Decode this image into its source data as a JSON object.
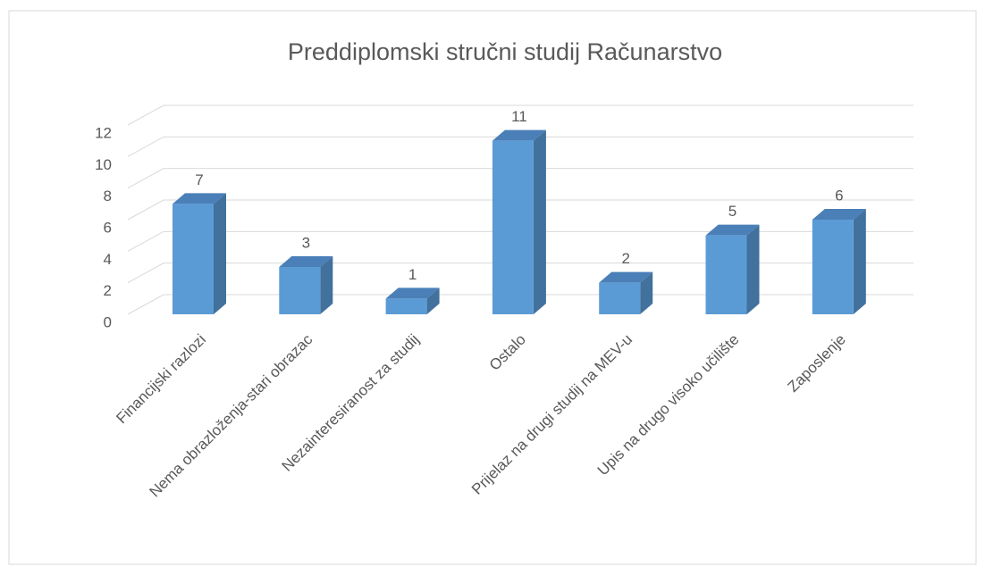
{
  "chart_data": {
    "type": "bar3d",
    "title": "Preddiplomski stručni studij Računarstvo",
    "categories": [
      "Financijski razlozi",
      "Nema obrazloženja-stari obrazac",
      "Nezainteresiranost za studij",
      "Ostalo",
      "Prijelaz na drugi studij na MEV-u",
      "Upis na drugo visoko učilište",
      "Zaposlenje"
    ],
    "values": [
      7,
      3,
      1,
      11,
      2,
      5,
      6
    ],
    "color": "#5b9bd5",
    "ylim": [
      0,
      12
    ],
    "yticks": [
      0,
      2,
      4,
      6,
      8,
      10,
      12
    ],
    "grid": true
  }
}
